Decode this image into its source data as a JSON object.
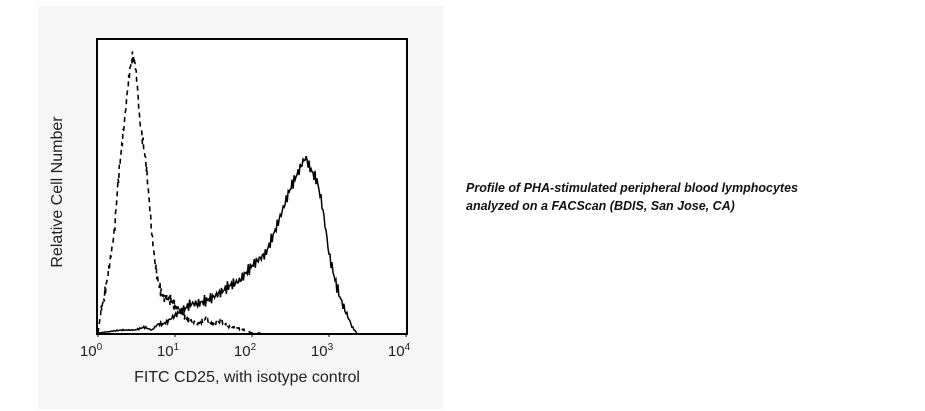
{
  "caption": "Profile of PHA-stimulated peripheral blood lymphocytes analyzed on a FACScan (BDIS, San Jose, CA)",
  "chart_data": {
    "type": "line",
    "xscale": "log",
    "xlim": [
      1,
      10000
    ],
    "ylim": [
      0,
      100
    ],
    "xlabel": "FITC CD25, with isotype control",
    "ylabel": "Relative Cell Number",
    "xticks": [
      {
        "base": "10",
        "exp": "0",
        "value": 1
      },
      {
        "base": "10",
        "exp": "1",
        "value": 10
      },
      {
        "base": "10",
        "exp": "2",
        "value": 100
      },
      {
        "base": "10",
        "exp": "3",
        "value": 1000
      },
      {
        "base": "10",
        "exp": "4",
        "value": 10000
      }
    ],
    "grid": false,
    "legend": "none",
    "series": [
      {
        "style": "dashed",
        "color": "#000000",
        "x": [
          1.0,
          1.1,
          1.2,
          1.35,
          1.5,
          1.65,
          1.8,
          2.0,
          2.2,
          2.4,
          2.6,
          2.8,
          3.0,
          3.2,
          3.5,
          3.8,
          4.2,
          4.6,
          5.0,
          5.5,
          6.0,
          6.6,
          7.2,
          8.0,
          9.0,
          10.0,
          12.0,
          14.0,
          17.0,
          20.0,
          25.0,
          30.0,
          40.0,
          50.0,
          60.0,
          80.0,
          100.0,
          130.0
        ],
        "y": [
          0,
          8,
          12,
          20,
          28,
          36,
          50,
          62,
          72,
          82,
          90,
          94,
          93,
          86,
          72,
          66,
          58,
          46,
          34,
          24,
          18,
          14,
          12,
          12,
          11,
          9,
          7,
          5,
          4,
          3,
          5,
          3,
          4,
          2,
          2,
          1,
          0,
          0
        ]
      },
      {
        "style": "solid",
        "color": "#000000",
        "x": [
          1.0,
          2.0,
          3.0,
          4.0,
          5.0,
          6.0,
          7.0,
          8.0,
          10.0,
          13.0,
          16.0,
          20.0,
          25.0,
          30.0,
          40.0,
          50.0,
          60.0,
          70.0,
          80.0,
          100.0,
          120.0,
          150.0,
          200.0,
          250.0,
          300.0,
          350.0,
          400.0,
          450.0,
          500.0,
          550.0,
          600.0,
          700.0,
          800.0,
          900.0,
          1000.0,
          1200.0,
          1400.0,
          1600.0,
          1800.0,
          2000.0,
          2300.0
        ],
        "y": [
          0,
          1,
          1,
          2,
          1,
          3,
          3,
          4,
          6,
          8,
          10,
          10,
          11,
          12,
          14,
          16,
          17,
          18,
          20,
          23,
          25,
          27,
          35,
          42,
          48,
          52,
          55,
          58,
          60,
          57,
          55,
          52,
          45,
          36,
          27,
          18,
          12,
          8,
          5,
          2,
          0
        ]
      }
    ]
  }
}
